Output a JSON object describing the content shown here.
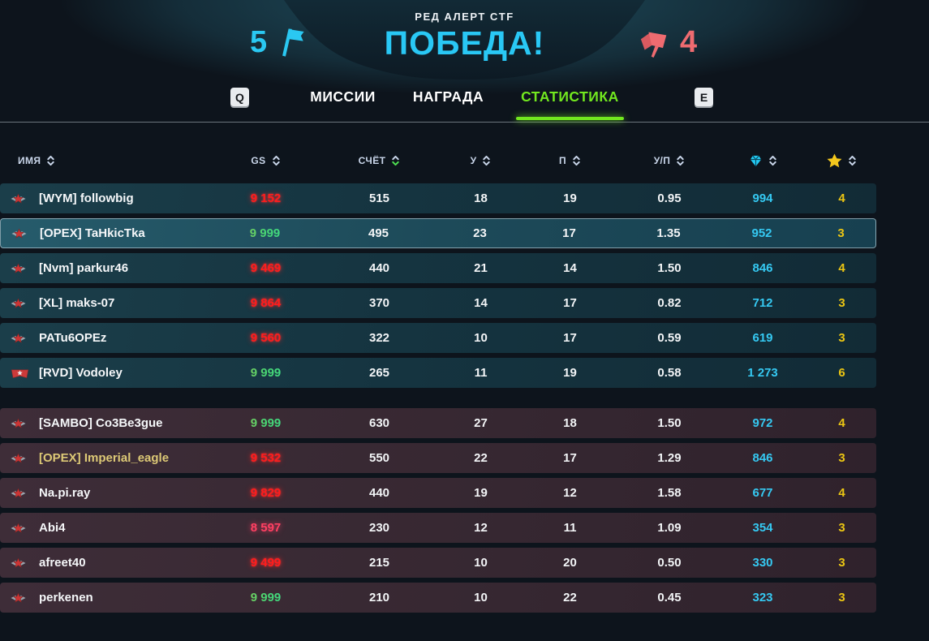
{
  "match": {
    "mode_label": "РЕД АЛЕРТ CTF",
    "result_label": "ПОБЕДА!",
    "blue_score": "5",
    "red_score": "4"
  },
  "tabs": {
    "key_prev": "Q",
    "key_next": "E",
    "items": [
      {
        "label": "МИССИИ",
        "active": false
      },
      {
        "label": "НАГРАДА",
        "active": false
      },
      {
        "label": "СТАТИСТИКА",
        "active": true
      }
    ]
  },
  "table": {
    "columns": {
      "name": "ИМЯ",
      "gs": "GS",
      "score": "СЧЁТ",
      "kills": "У",
      "deaths": "П",
      "kd": "У/П",
      "crystals": "crystal-icon",
      "stars": "star-icon"
    },
    "sort": {
      "column": "score",
      "direction": "desc"
    },
    "teams": [
      {
        "id": "blue",
        "players": [
          {
            "rank": "star-wings",
            "name": "[WYM] followbig",
            "gs": "9 152",
            "gs_color": "red",
            "score": "515",
            "kills": "18",
            "deaths": "19",
            "kd": "0.95",
            "crystals": "994",
            "stars": "4",
            "selected": false,
            "name_gold": false
          },
          {
            "rank": "star-wings",
            "name": "[OPEX] TaHkicTka",
            "gs": "9 999",
            "gs_color": "gradient",
            "score": "495",
            "kills": "23",
            "deaths": "17",
            "kd": "1.35",
            "crystals": "952",
            "stars": "3",
            "selected": true,
            "name_gold": false
          },
          {
            "rank": "star-wings",
            "name": "[Nvm] parkur46",
            "gs": "9 469",
            "gs_color": "red",
            "score": "440",
            "kills": "21",
            "deaths": "14",
            "kd": "1.50",
            "crystals": "846",
            "stars": "4",
            "selected": false,
            "name_gold": false
          },
          {
            "rank": "star-wings",
            "name": "[XL] maks-07",
            "gs": "9 864",
            "gs_color": "red",
            "score": "370",
            "kills": "14",
            "deaths": "17",
            "kd": "0.82",
            "crystals": "712",
            "stars": "3",
            "selected": false,
            "name_gold": false
          },
          {
            "rank": "star-wings",
            "name": "PATu6OPEz",
            "gs": "9 560",
            "gs_color": "red",
            "score": "322",
            "kills": "10",
            "deaths": "17",
            "kd": "0.59",
            "crystals": "619",
            "stars": "3",
            "selected": false,
            "name_gold": false
          },
          {
            "rank": "banner-star",
            "name": "[RVD] Vodoley",
            "gs": "9 999",
            "gs_color": "gradient",
            "score": "265",
            "kills": "11",
            "deaths": "19",
            "kd": "0.58",
            "crystals": "1 273",
            "stars": "6",
            "selected": false,
            "name_gold": false
          }
        ]
      },
      {
        "id": "red",
        "players": [
          {
            "rank": "star-wings",
            "name": "[SAMBO] Co3Be3gue",
            "gs": "9 999",
            "gs_color": "gradient",
            "score": "630",
            "kills": "27",
            "deaths": "18",
            "kd": "1.50",
            "crystals": "972",
            "stars": "4",
            "selected": false,
            "name_gold": false
          },
          {
            "rank": "star-wings",
            "name": "[OPEX] Imperial_eagle",
            "gs": "9 532",
            "gs_color": "red",
            "score": "550",
            "kills": "22",
            "deaths": "17",
            "kd": "1.29",
            "crystals": "846",
            "stars": "3",
            "selected": false,
            "name_gold": true
          },
          {
            "rank": "star-wings",
            "name": "Na.pi.ray",
            "gs": "9 829",
            "gs_color": "red",
            "score": "440",
            "kills": "19",
            "deaths": "12",
            "kd": "1.58",
            "crystals": "677",
            "stars": "4",
            "selected": false,
            "name_gold": false
          },
          {
            "rank": "star-wings",
            "name": "Abi4",
            "gs": "8 597",
            "gs_color": "pink",
            "score": "230",
            "kills": "12",
            "deaths": "11",
            "kd": "1.09",
            "crystals": "354",
            "stars": "3",
            "selected": false,
            "name_gold": false
          },
          {
            "rank": "star-wings",
            "name": "afreet40",
            "gs": "9 499",
            "gs_color": "red",
            "score": "215",
            "kills": "10",
            "deaths": "20",
            "kd": "0.50",
            "crystals": "330",
            "stars": "3",
            "selected": false,
            "name_gold": false
          },
          {
            "rank": "star-wings",
            "name": "perkenen",
            "gs": "9 999",
            "gs_color": "gradient",
            "score": "210",
            "kills": "10",
            "deaths": "22",
            "kd": "0.45",
            "crystals": "323",
            "stars": "3",
            "selected": false,
            "name_gold": false
          }
        ]
      }
    ]
  },
  "colors": {
    "accent_cyan": "#29c8f5",
    "accent_green": "#72e81f",
    "red_team": "#ef6b70",
    "gs_red": "#ff1c1c",
    "gs_green": "#35e08d",
    "crystal_cyan": "#35c9f2",
    "star_yellow": "#ecc613"
  }
}
